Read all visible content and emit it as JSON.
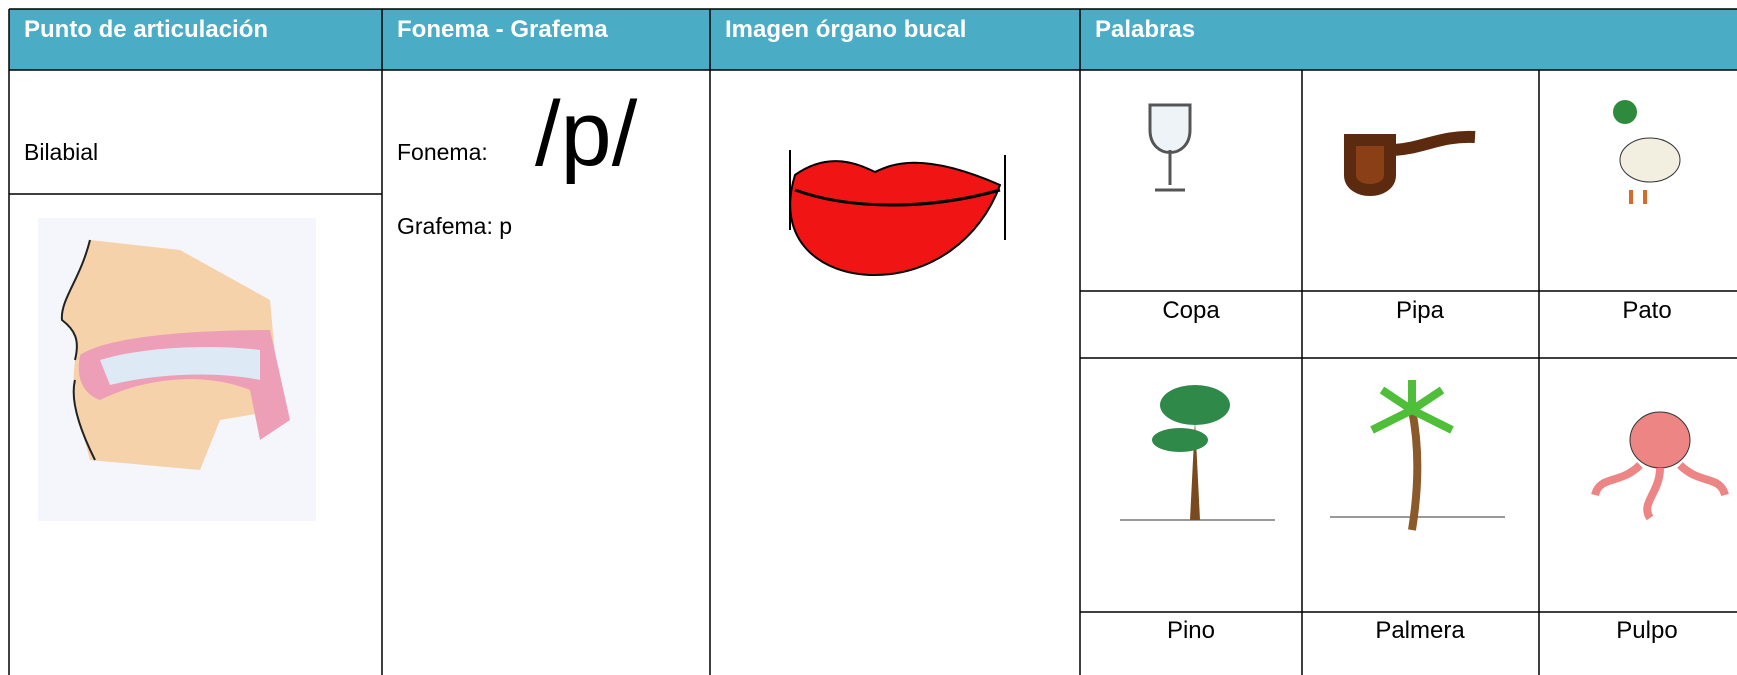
{
  "header": {
    "columns": [
      "Punto de articulación",
      "Fonema - Grafema",
      "Imagen órgano bucal",
      "Palabras"
    ]
  },
  "articulation": {
    "label": "Bilabial"
  },
  "phoneme": {
    "prefix": "Fonema:",
    "symbol": "/p/",
    "grapheme": "Grafema: p"
  },
  "words": [
    "Copa",
    "Pipa",
    "Pato",
    "Pino",
    "Palmera",
    "Pulpo"
  ]
}
